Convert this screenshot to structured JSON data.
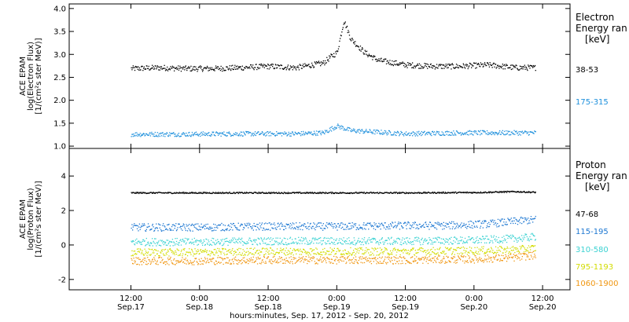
{
  "chart_data": [
    {
      "type": "scatter",
      "panel": "electron",
      "ylabel_lines": [
        "ACE EPAM",
        "log(Electron Flux)",
        "[1/(cm²s ster MeV)]"
      ],
      "ylim": [
        0.95,
        4.1
      ],
      "yticks": [
        1.0,
        1.5,
        2.0,
        2.5,
        3.0,
        3.5,
        4.0
      ],
      "ytick_labels": [
        "1.0",
        "1.5",
        "2.0",
        "2.5",
        "3.0",
        "3.5",
        "4.0"
      ],
      "legend_title_lines": [
        "Electron",
        "Energy ran",
        "[keV]"
      ],
      "series": [
        {
          "name": "38-53",
          "color": "#000000",
          "x": [
            0.0,
            0.2,
            0.4,
            0.6,
            0.8,
            1.0,
            1.2,
            1.4,
            1.45,
            1.5,
            1.55,
            1.6,
            1.7,
            1.8,
            2.0,
            2.2,
            2.4,
            2.6,
            2.8,
            2.95
          ],
          "y": [
            2.7,
            2.72,
            2.7,
            2.7,
            2.72,
            2.75,
            2.72,
            2.82,
            2.95,
            3.05,
            3.75,
            3.35,
            3.05,
            2.88,
            2.78,
            2.75,
            2.75,
            2.78,
            2.72,
            2.72
          ]
        },
        {
          "name": "175-315",
          "color": "#1e90dc",
          "x": [
            0.0,
            0.4,
            0.8,
            1.2,
            1.4,
            1.5,
            1.6,
            2.0,
            2.4,
            2.8,
            2.95
          ],
          "y": [
            1.27,
            1.27,
            1.28,
            1.28,
            1.3,
            1.45,
            1.35,
            1.28,
            1.3,
            1.3,
            1.3
          ]
        }
      ]
    },
    {
      "type": "scatter",
      "panel": "proton",
      "ylabel_lines": [
        "ACE EPAM",
        "log(Proton Flux)",
        "[1/(cm²s ster MeV)]"
      ],
      "ylim": [
        -2.6,
        5.6
      ],
      "yticks": [
        -2,
        0,
        2,
        4
      ],
      "ytick_labels": [
        "-2",
        "0",
        "2",
        "4"
      ],
      "legend_title_lines": [
        "Proton",
        "Energy ran",
        "[keV]"
      ],
      "series": [
        {
          "name": "47-68",
          "color": "#000000",
          "x": [
            0.0,
            0.5,
            1.0,
            1.5,
            2.0,
            2.5,
            2.8,
            2.95
          ],
          "y": [
            3.05,
            3.05,
            3.05,
            3.05,
            3.05,
            3.07,
            3.12,
            3.08
          ]
        },
        {
          "name": "115-195",
          "color": "#1e78d2",
          "x": [
            0.0,
            0.5,
            1.0,
            1.5,
            2.0,
            2.3,
            2.6,
            2.8,
            2.95
          ],
          "y": [
            1.05,
            1.05,
            1.1,
            1.1,
            1.15,
            1.15,
            1.25,
            1.4,
            1.5
          ]
        },
        {
          "name": "310-580",
          "color": "#3cd2d2",
          "x": [
            0.0,
            0.5,
            1.0,
            1.5,
            2.0,
            2.5,
            2.8,
            2.95
          ],
          "y": [
            0.2,
            0.2,
            0.25,
            0.25,
            0.25,
            0.3,
            0.4,
            0.5
          ]
        },
        {
          "name": "795-1193",
          "color": "#d2dc00",
          "x": [
            0.0,
            0.5,
            1.0,
            1.5,
            2.0,
            2.5,
            2.8,
            2.95
          ],
          "y": [
            -0.4,
            -0.4,
            -0.35,
            -0.35,
            -0.35,
            -0.3,
            -0.25,
            -0.15
          ]
        },
        {
          "name": "1060-1900",
          "color": "#f09610",
          "x": [
            0.0,
            0.5,
            1.0,
            1.5,
            2.0,
            2.5,
            2.8,
            2.95
          ],
          "y": [
            -0.9,
            -0.9,
            -0.85,
            -0.85,
            -0.85,
            -0.8,
            -0.7,
            -0.55
          ]
        }
      ]
    }
  ],
  "x_axis": {
    "range_days": [
      -0.45,
      3.2
    ],
    "ticks": [
      0.0,
      0.5,
      1.0,
      1.5,
      2.0,
      2.5,
      3.0
    ],
    "tick_time_labels": [
      "12:00",
      "0:00",
      "12:00",
      "0:00",
      "12:00",
      "0:00",
      "12:00"
    ],
    "tick_date_labels": [
      "Sep.17",
      "Sep.18",
      "Sep.18",
      "Sep.19",
      "Sep.19",
      "Sep.20",
      "Sep.20"
    ],
    "xlabel": "hours:minutes, Sep. 17, 2012 - Sep. 20, 2012"
  }
}
